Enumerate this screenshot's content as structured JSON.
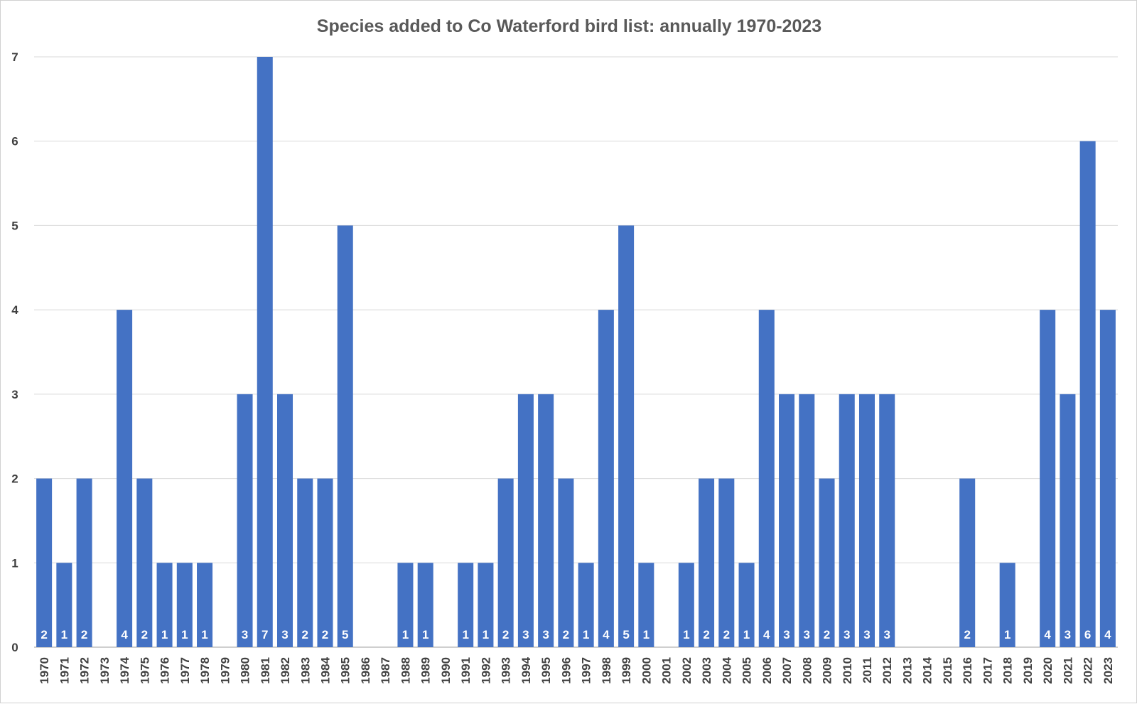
{
  "chart_data": {
    "type": "bar",
    "title": "Species added to Co Waterford bird list: annually 1970-2023",
    "xlabel": "",
    "ylabel": "",
    "ylim": [
      0,
      7
    ],
    "yticks": [
      "0",
      "1",
      "2",
      "3",
      "4",
      "5",
      "6",
      "7"
    ],
    "grid": true,
    "legend": "none",
    "bar_color": "#4472C4",
    "data_label_color": "#FFFFFF",
    "categories": [
      "1970",
      "1971",
      "1972",
      "1973",
      "1974",
      "1975",
      "1976",
      "1977",
      "1978",
      "1979",
      "1980",
      "1981",
      "1982",
      "1983",
      "1984",
      "1985",
      "1986",
      "1987",
      "1988",
      "1989",
      "1990",
      "1991",
      "1992",
      "1993",
      "1994",
      "1995",
      "1996",
      "1997",
      "1998",
      "1999",
      "2000",
      "2001",
      "2002",
      "2003",
      "2004",
      "2005",
      "2006",
      "2007",
      "2008",
      "2009",
      "2010",
      "2011",
      "2012",
      "2013",
      "2014",
      "2015",
      "2016",
      "2017",
      "2018",
      "2019",
      "2020",
      "2021",
      "2022",
      "2023"
    ],
    "values": [
      2,
      1,
      2,
      0,
      4,
      2,
      1,
      1,
      1,
      0,
      3,
      7,
      3,
      2,
      2,
      5,
      0,
      0,
      1,
      1,
      0,
      1,
      1,
      2,
      3,
      3,
      2,
      1,
      4,
      5,
      1,
      0,
      1,
      2,
      2,
      1,
      4,
      3,
      3,
      2,
      3,
      3,
      3,
      0,
      0,
      0,
      2,
      0,
      1,
      0,
      4,
      3,
      6,
      4
    ]
  }
}
